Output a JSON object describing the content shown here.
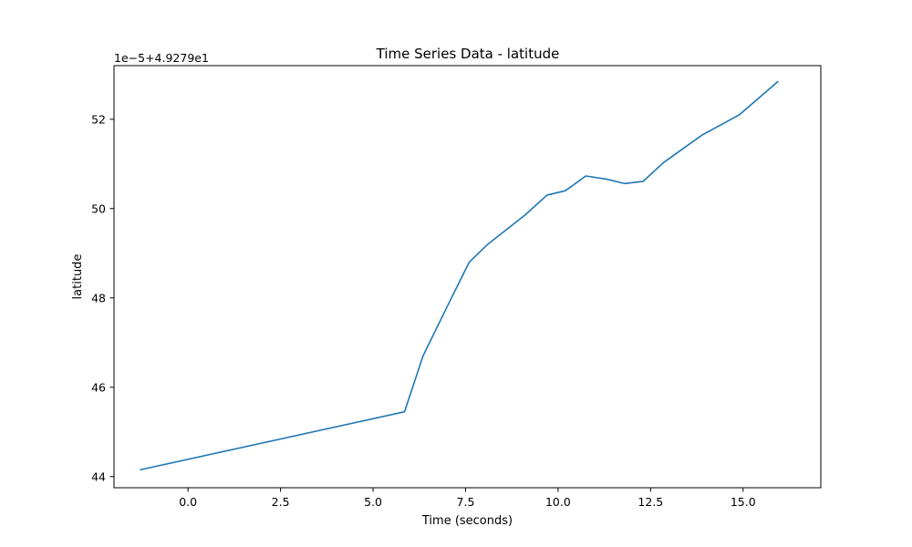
{
  "chart_data": {
    "type": "line",
    "title": "Time Series Data - latitude",
    "xlabel": "Time (seconds)",
    "ylabel": "latitude",
    "y_offset_text": "1e−5+4.9279e1",
    "xlim": [
      -2.0,
      17.1
    ],
    "ylim": [
      43.75,
      53.2
    ],
    "x_ticks": [
      0.0,
      2.5,
      5.0,
      7.5,
      10.0,
      12.5,
      15.0
    ],
    "x_tick_labels": [
      "0.0",
      "2.5",
      "5.0",
      "7.5",
      "10.0",
      "12.5",
      "15.0"
    ],
    "y_ticks": [
      44,
      46,
      48,
      50,
      52
    ],
    "y_tick_labels": [
      "44",
      "46",
      "48",
      "50",
      "52"
    ],
    "grid": false,
    "series": [
      {
        "color": "#1f77b4",
        "x": [
          -1.3,
          5.85,
          6.35,
          7.0,
          7.6,
          8.1,
          9.1,
          9.7,
          10.2,
          10.75,
          11.3,
          11.8,
          12.3,
          12.85,
          13.9,
          14.9,
          15.95
        ],
        "y": [
          44.15,
          45.45,
          46.7,
          47.8,
          48.8,
          49.2,
          49.85,
          50.3,
          50.4,
          50.73,
          50.66,
          50.56,
          50.61,
          51.03,
          51.65,
          52.1,
          52.85
        ]
      }
    ]
  }
}
